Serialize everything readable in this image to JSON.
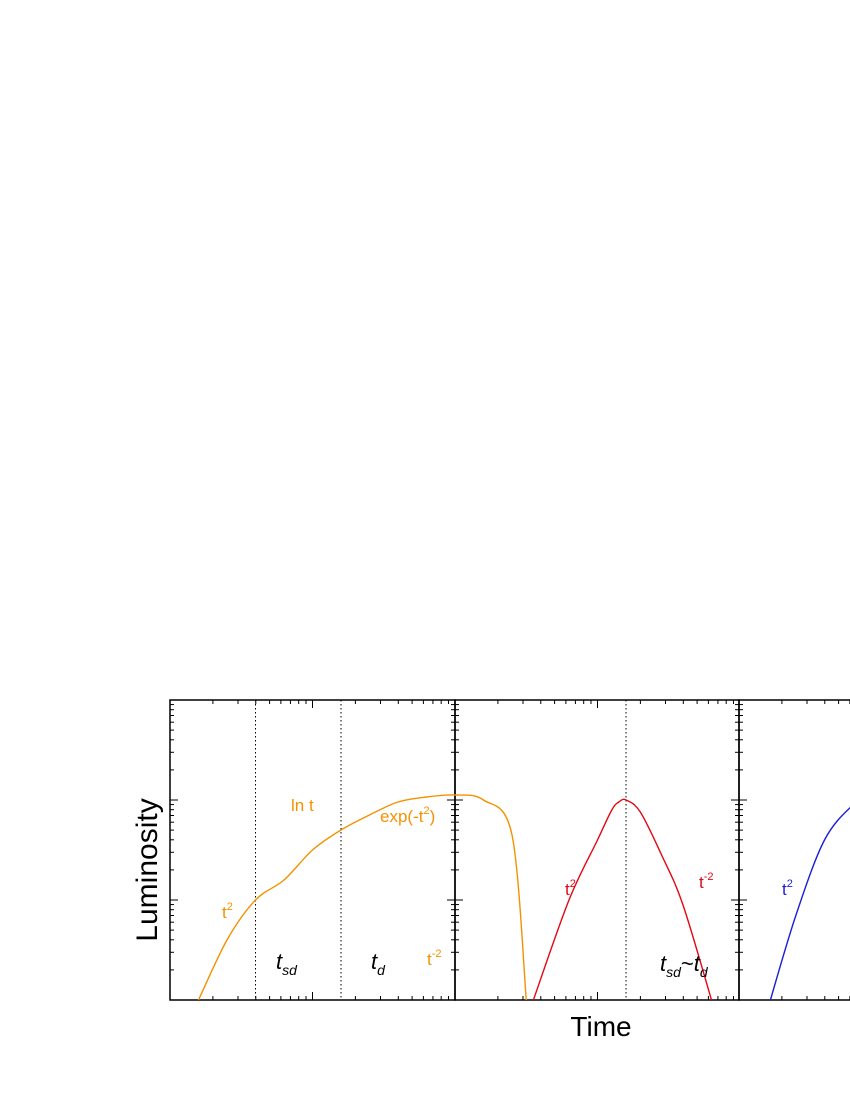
{
  "figure": {
    "ylabel": "Luminosity",
    "xlabel": "Time"
  },
  "chart_data": [
    {
      "type": "line",
      "panel": "left",
      "x_scale": "log",
      "y_scale": "log",
      "x_decades": [
        0,
        2
      ],
      "y_decades": [
        0,
        3
      ],
      "grid": false,
      "color": "#f39200",
      "series": [
        {
          "x": [
            0.2,
            0.4,
            0.6,
            0.8,
            1.0,
            1.2,
            1.4,
            1.6,
            1.8,
            2.0,
            2.2,
            2.4,
            2.5
          ],
          "y": [
            0.0,
            0.6,
            1.0,
            1.2,
            1.5,
            1.7,
            1.85,
            1.98,
            2.03,
            2.05,
            2.0,
            1.65,
            0.0
          ]
        }
      ],
      "vlines": [
        {
          "x": 0.6,
          "label": "t",
          "sub": "sd"
        },
        {
          "x": 1.2,
          "label": "t",
          "sub": "d"
        }
      ],
      "annotations": [
        {
          "base": "t",
          "sup": "2"
        },
        {
          "base": "ln t",
          "sup": ""
        },
        {
          "base": "exp(-t",
          "sup": "2",
          "tail": ")"
        },
        {
          "base": "t",
          "sup": "-2"
        }
      ]
    },
    {
      "type": "line",
      "panel": "middle",
      "x_scale": "log",
      "y_scale": "log",
      "grid": false,
      "color": "#e30613",
      "series": [
        {
          "x": [
            0.55,
            0.8,
            1.0,
            1.1,
            1.15,
            1.2,
            1.3,
            1.45,
            1.6,
            1.8
          ],
          "y": [
            0.0,
            1.0,
            1.6,
            1.9,
            1.98,
            2.0,
            1.88,
            1.45,
            0.95,
            0.0
          ]
        }
      ],
      "vlines": [
        {
          "x": 1.2,
          "label": "t",
          "sub": "sd",
          "label2": "t",
          "sub2": "d",
          "sep": "~"
        }
      ],
      "annotations": [
        {
          "base": "t",
          "sup": "2"
        },
        {
          "base": "t",
          "sup": "-2"
        }
      ]
    },
    {
      "type": "line",
      "panel": "right",
      "x_scale": "log",
      "y_scale": "log",
      "grid": false,
      "color": "#1d1dd8",
      "series": [
        {
          "x": [
            0.22,
            0.4,
            0.6,
            0.8,
            0.9
          ],
          "y": [
            0.0,
            0.85,
            1.6,
            1.95,
            2.0
          ]
        }
      ],
      "annotations": [
        {
          "base": "t",
          "sup": "2"
        }
      ]
    }
  ]
}
